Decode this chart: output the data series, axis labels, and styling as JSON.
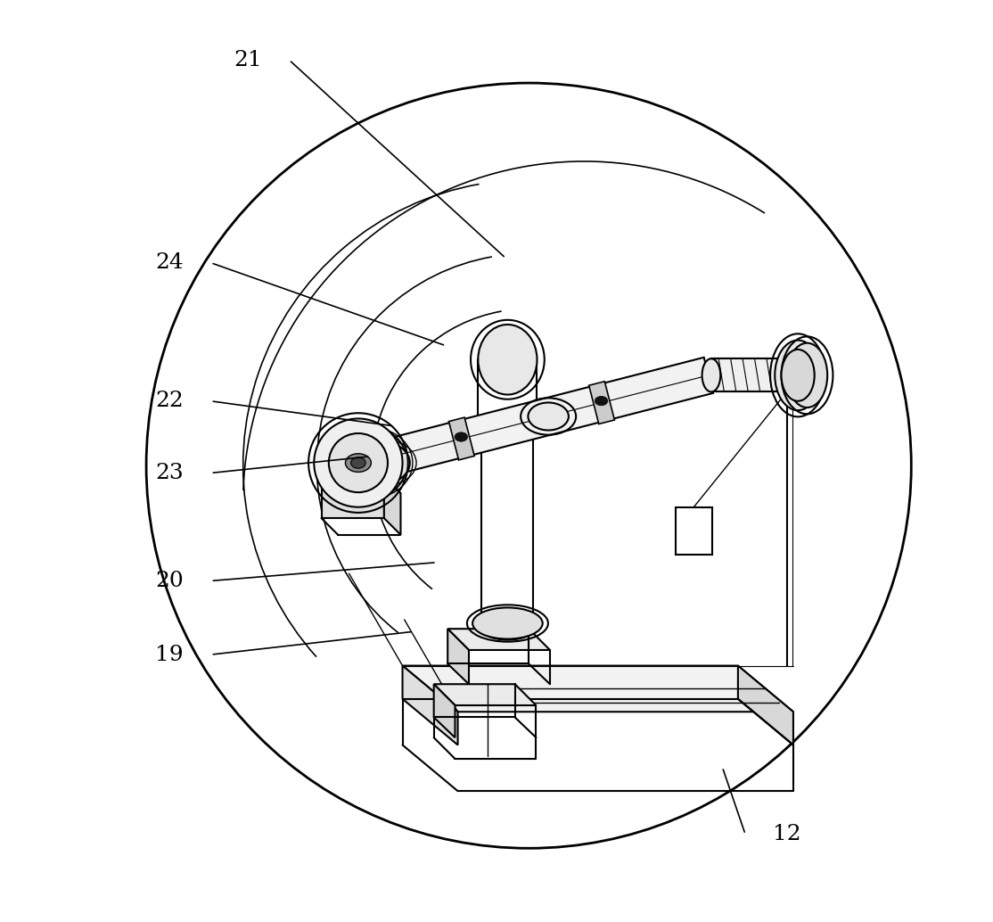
{
  "bg_color": "#ffffff",
  "line_color": "#000000",
  "label_color": "#000000",
  "fig_width": 11.14,
  "fig_height": 10.34,
  "label_fontsize": 18,
  "annotations": {
    "21": {
      "label": [
        0.23,
        0.935
      ],
      "point": [
        0.51,
        0.72
      ]
    },
    "24": {
      "label": [
        0.145,
        0.715
      ],
      "point": [
        0.445,
        0.625
      ]
    },
    "22": {
      "label": [
        0.145,
        0.565
      ],
      "point": [
        0.388,
        0.538
      ]
    },
    "23": {
      "label": [
        0.145,
        0.487
      ],
      "point": [
        0.363,
        0.505
      ]
    },
    "20": {
      "label": [
        0.145,
        0.37
      ],
      "point": [
        0.435,
        0.39
      ]
    },
    "19": {
      "label": [
        0.145,
        0.29
      ],
      "point": [
        0.41,
        0.315
      ]
    },
    "12": {
      "label": [
        0.815,
        0.095
      ],
      "point": [
        0.745,
        0.168
      ]
    }
  }
}
